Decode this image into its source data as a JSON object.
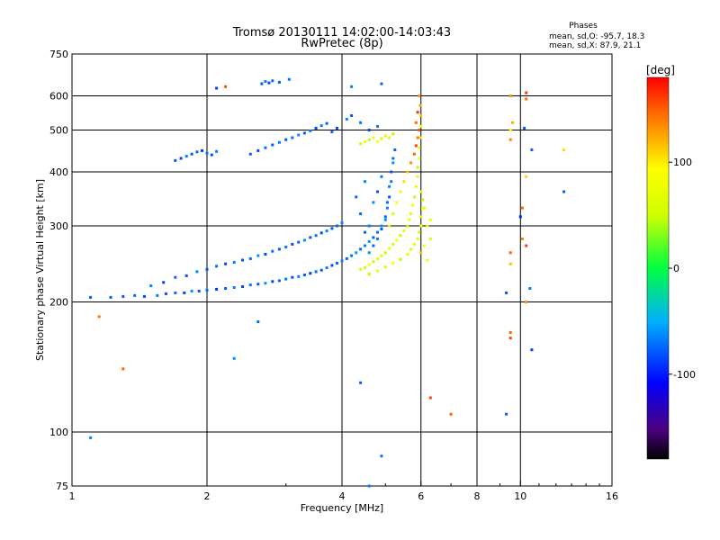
{
  "chart_data": {
    "type": "scatter",
    "title": "Tromsø 20130111 14:02:00-14:03:43",
    "subtitle": "RwPretec (8p)",
    "xlabel": "Frequency [MHz]",
    "ylabel": "Stationary phase Virtual Height [km]",
    "x_scale": "log",
    "y_scale": "log",
    "xlim": [
      1,
      16
    ],
    "ylim": [
      75,
      750
    ],
    "x_ticks": [
      1,
      2,
      4,
      6,
      8,
      10,
      16
    ],
    "y_ticks": [
      75,
      100,
      200,
      300,
      400,
      500,
      600,
      750
    ],
    "x_grid": [
      2,
      4,
      6,
      8,
      10
    ],
    "y_grid": [
      100,
      200,
      300,
      400,
      500,
      600
    ],
    "grid": true,
    "colorbar": {
      "title": "[deg]",
      "range": [
        -180,
        180
      ],
      "ticks": [
        100,
        0,
        -100
      ],
      "position": "right"
    },
    "stats": {
      "heading": "Phases",
      "line1": "mean, sd,O: -95.7, 18.3",
      "line2": "mean, sd,X:  87.9, 21.1"
    },
    "series": [
      {
        "name": "O",
        "phase_mean": -95.7,
        "points": [
          [
            1.22,
            205,
            -110
          ],
          [
            1.3,
            206,
            -112
          ],
          [
            1.38,
            207,
            -105
          ],
          [
            1.45,
            206,
            -118
          ],
          [
            1.55,
            207,
            -100
          ],
          [
            1.62,
            209,
            -115
          ],
          [
            1.7,
            210,
            -108
          ],
          [
            1.78,
            210,
            -120
          ],
          [
            1.85,
            212,
            -95
          ],
          [
            1.92,
            212,
            -112
          ],
          [
            2.0,
            213,
            -105
          ],
          [
            2.1,
            214,
            -125
          ],
          [
            2.2,
            215,
            -110
          ],
          [
            2.3,
            216,
            -100
          ],
          [
            2.4,
            217,
            -118
          ],
          [
            2.5,
            219,
            -104
          ],
          [
            2.6,
            220,
            -112
          ],
          [
            2.7,
            221,
            -96
          ],
          [
            2.8,
            223,
            -120
          ],
          [
            2.9,
            224,
            -108
          ],
          [
            3.0,
            226,
            -102
          ],
          [
            3.1,
            228,
            -115
          ],
          [
            3.2,
            229,
            -99
          ],
          [
            3.3,
            231,
            -110
          ],
          [
            3.4,
            233,
            -123
          ],
          [
            3.5,
            235,
            -105
          ],
          [
            3.6,
            237,
            -112
          ],
          [
            3.7,
            240,
            -100
          ],
          [
            3.8,
            243,
            -116
          ],
          [
            3.9,
            246,
            -108
          ],
          [
            4.0,
            249,
            -98
          ],
          [
            4.1,
            252,
            -110
          ],
          [
            4.2,
            256,
            -104
          ],
          [
            4.3,
            260,
            -92
          ],
          [
            4.4,
            265,
            -108
          ],
          [
            4.5,
            270,
            -100
          ],
          [
            4.6,
            276,
            -95
          ],
          [
            4.7,
            282,
            -110
          ],
          [
            4.8,
            290,
            -102
          ],
          [
            4.9,
            300,
            -90
          ],
          [
            5.0,
            315,
            -106
          ],
          [
            5.05,
            330,
            -98
          ],
          [
            5.1,
            350,
            -112
          ],
          [
            5.15,
            380,
            -100
          ],
          [
            5.2,
            420,
            -94
          ],
          [
            5.25,
            450,
            -108
          ],
          [
            1.5,
            218,
            -100
          ],
          [
            1.6,
            222,
            -120
          ],
          [
            1.7,
            228,
            -108
          ],
          [
            1.8,
            230,
            -115
          ],
          [
            1.9,
            235,
            -98
          ],
          [
            2.0,
            238,
            -112
          ],
          [
            2.1,
            242,
            -106
          ],
          [
            2.2,
            245,
            -120
          ],
          [
            2.3,
            247,
            -100
          ],
          [
            2.4,
            250,
            -115
          ],
          [
            2.5,
            252,
            -108
          ],
          [
            2.6,
            256,
            -95
          ],
          [
            2.7,
            258,
            -118
          ],
          [
            2.8,
            262,
            -104
          ],
          [
            2.9,
            265,
            -112
          ],
          [
            3.0,
            268,
            -100
          ],
          [
            3.1,
            272,
            -116
          ],
          [
            3.2,
            275,
            -108
          ],
          [
            3.3,
            278,
            -96
          ],
          [
            3.4,
            282,
            -112
          ],
          [
            3.5,
            285,
            -104
          ],
          [
            3.6,
            289,
            -118
          ],
          [
            3.7,
            292,
            -100
          ],
          [
            3.8,
            296,
            -110
          ],
          [
            3.9,
            300,
            -105
          ],
          [
            4.0,
            305,
            -98
          ],
          [
            1.7,
            425,
            -110
          ],
          [
            1.75,
            430,
            -118
          ],
          [
            1.8,
            435,
            -100
          ],
          [
            1.85,
            440,
            -112
          ],
          [
            1.9,
            445,
            -106
          ],
          [
            1.95,
            448,
            -122
          ],
          [
            2.0,
            442,
            -104
          ],
          [
            2.05,
            438,
            -116
          ],
          [
            2.1,
            446,
            -100
          ],
          [
            2.5,
            440,
            -110
          ],
          [
            2.6,
            448,
            -118
          ],
          [
            2.7,
            455,
            -104
          ],
          [
            2.8,
            462,
            -112
          ],
          [
            2.9,
            468,
            -100
          ],
          [
            3.0,
            475,
            -115
          ],
          [
            3.1,
            480,
            -108
          ],
          [
            3.2,
            487,
            -96
          ],
          [
            3.3,
            492,
            -112
          ],
          [
            3.4,
            498,
            -104
          ],
          [
            3.5,
            505,
            -118
          ],
          [
            3.6,
            512,
            -100
          ],
          [
            3.7,
            518,
            -110
          ],
          [
            3.8,
            495,
            -106
          ],
          [
            3.9,
            505,
            -116
          ],
          [
            4.1,
            530,
            -100
          ],
          [
            4.2,
            540,
            -112
          ],
          [
            4.4,
            520,
            -104
          ],
          [
            4.6,
            500,
            -118
          ],
          [
            4.8,
            510,
            -102
          ],
          [
            2.65,
            640,
            -110
          ],
          [
            2.7,
            648,
            -100
          ],
          [
            2.75,
            643,
            -118
          ],
          [
            2.8,
            650,
            -106
          ],
          [
            2.9,
            645,
            -112
          ],
          [
            3.05,
            655,
            -104
          ],
          [
            2.1,
            625,
            -120
          ],
          [
            4.2,
            630,
            -100
          ],
          [
            4.9,
            640,
            -108
          ],
          [
            4.6,
            260,
            -95
          ],
          [
            4.7,
            270,
            -108
          ],
          [
            4.8,
            280,
            -100
          ],
          [
            4.9,
            295,
            -112
          ],
          [
            5.0,
            310,
            -96
          ],
          [
            5.05,
            340,
            -106
          ],
          [
            5.1,
            370,
            -100
          ],
          [
            5.15,
            400,
            -112
          ],
          [
            5.2,
            430,
            -104
          ],
          [
            4.5,
            290,
            -110
          ],
          [
            4.6,
            300,
            -100
          ],
          [
            4.4,
            320,
            -108
          ],
          [
            4.7,
            340,
            -96
          ],
          [
            4.8,
            360,
            -112
          ],
          [
            4.9,
            390,
            -104
          ],
          [
            4.3,
            350,
            -106
          ],
          [
            4.5,
            380,
            -98
          ],
          [
            1.1,
            205,
            -110
          ],
          [
            1.1,
            97,
            -100
          ],
          [
            2.6,
            180,
            -105
          ],
          [
            2.3,
            148,
            -96
          ],
          [
            4.4,
            130,
            -110
          ],
          [
            4.6,
            75,
            -100
          ],
          [
            4.9,
            88,
            -105
          ],
          [
            9.3,
            110,
            -110
          ],
          [
            9.3,
            210,
            -115
          ],
          [
            10.5,
            215,
            -100
          ],
          [
            10.6,
            450,
            -108
          ],
          [
            12.5,
            360,
            -110
          ],
          [
            10.0,
            315,
            -130
          ],
          [
            10.2,
            505,
            -112
          ],
          [
            10.6,
            155,
            -120
          ]
        ]
      },
      {
        "name": "X",
        "phase_mean": 87.9,
        "points": [
          [
            4.4,
            238,
            90
          ],
          [
            4.5,
            240,
            85
          ],
          [
            4.6,
            244,
            100
          ],
          [
            4.7,
            248,
            78
          ],
          [
            4.8,
            252,
            92
          ],
          [
            4.9,
            256,
            88
          ],
          [
            5.0,
            260,
            80
          ],
          [
            5.1,
            266,
            95
          ],
          [
            5.2,
            272,
            86
          ],
          [
            5.3,
            278,
            100
          ],
          [
            5.4,
            285,
            82
          ],
          [
            5.5,
            292,
            90
          ],
          [
            5.6,
            300,
            76
          ],
          [
            5.65,
            310,
            95
          ],
          [
            5.7,
            320,
            88
          ],
          [
            5.75,
            335,
            100
          ],
          [
            5.8,
            350,
            84
          ],
          [
            5.85,
            370,
            92
          ],
          [
            5.9,
            390,
            105
          ],
          [
            5.9,
            410,
            80
          ],
          [
            5.95,
            430,
            98
          ],
          [
            5.95,
            455,
            88
          ],
          [
            5.98,
            480,
            110
          ],
          [
            6.0,
            510,
            95
          ],
          [
            6.0,
            540,
            120
          ],
          [
            5.98,
            570,
            130
          ],
          [
            4.6,
            232,
            80
          ],
          [
            4.8,
            236,
            95
          ],
          [
            5.0,
            241,
            88
          ],
          [
            5.2,
            246,
            100
          ],
          [
            5.4,
            251,
            78
          ],
          [
            5.6,
            258,
            92
          ],
          [
            5.7,
            265,
            86
          ],
          [
            5.8,
            272,
            104
          ],
          [
            5.9,
            280,
            90
          ],
          [
            5.95,
            290,
            82
          ],
          [
            6.0,
            300,
            98
          ],
          [
            6.0,
            315,
            88
          ],
          [
            6.05,
            330,
            100
          ],
          [
            6.05,
            345,
            80
          ],
          [
            6.0,
            360,
            95
          ],
          [
            4.4,
            465,
            85
          ],
          [
            4.5,
            470,
            95
          ],
          [
            4.6,
            475,
            80
          ],
          [
            4.7,
            480,
            92
          ],
          [
            4.8,
            470,
            100
          ],
          [
            4.9,
            478,
            88
          ],
          [
            5.0,
            485,
            105
          ],
          [
            5.1,
            480,
            90
          ],
          [
            5.2,
            490,
            78
          ],
          [
            5.1,
            300,
            90
          ],
          [
            5.2,
            320,
            85
          ],
          [
            5.3,
            340,
            100
          ],
          [
            5.4,
            360,
            95
          ],
          [
            5.5,
            380,
            110
          ],
          [
            5.6,
            400,
            120
          ],
          [
            5.7,
            420,
            135
          ],
          [
            5.8,
            440,
            150
          ],
          [
            5.85,
            460,
            160
          ],
          [
            5.9,
            480,
            140
          ],
          [
            5.95,
            500,
            155
          ],
          [
            5.85,
            520,
            145
          ],
          [
            5.9,
            550,
            165
          ],
          [
            5.95,
            600,
            130
          ],
          [
            6.1,
            330,
            90
          ],
          [
            6.2,
            300,
            95
          ],
          [
            6.3,
            280,
            88
          ],
          [
            6.0,
            260,
            120
          ],
          [
            6.1,
            270,
            100
          ],
          [
            6.2,
            250,
            95
          ],
          [
            1.15,
            185,
            140
          ],
          [
            1.3,
            140,
            150
          ],
          [
            2.2,
            630,
            155
          ],
          [
            6.3,
            120,
            160
          ],
          [
            9.5,
            170,
            150
          ],
          [
            9.5,
            165,
            160
          ],
          [
            9.5,
            245,
            120
          ],
          [
            9.5,
            600,
            130
          ],
          [
            10.3,
            610,
            165
          ],
          [
            10.3,
            590,
            145
          ],
          [
            9.5,
            475,
            140
          ],
          [
            9.6,
            520,
            125
          ],
          [
            10.3,
            200,
            135
          ],
          [
            12.5,
            450,
            110
          ],
          [
            10.1,
            330,
            150
          ],
          [
            10.3,
            270,
            160
          ],
          [
            10.3,
            390,
            115
          ],
          [
            10.1,
            280,
            140
          ],
          [
            9.5,
            260,
            150
          ],
          [
            6.3,
            310,
            95
          ],
          [
            7.0,
            110,
            150
          ],
          [
            9.5,
            500,
            100
          ]
        ]
      }
    ]
  }
}
